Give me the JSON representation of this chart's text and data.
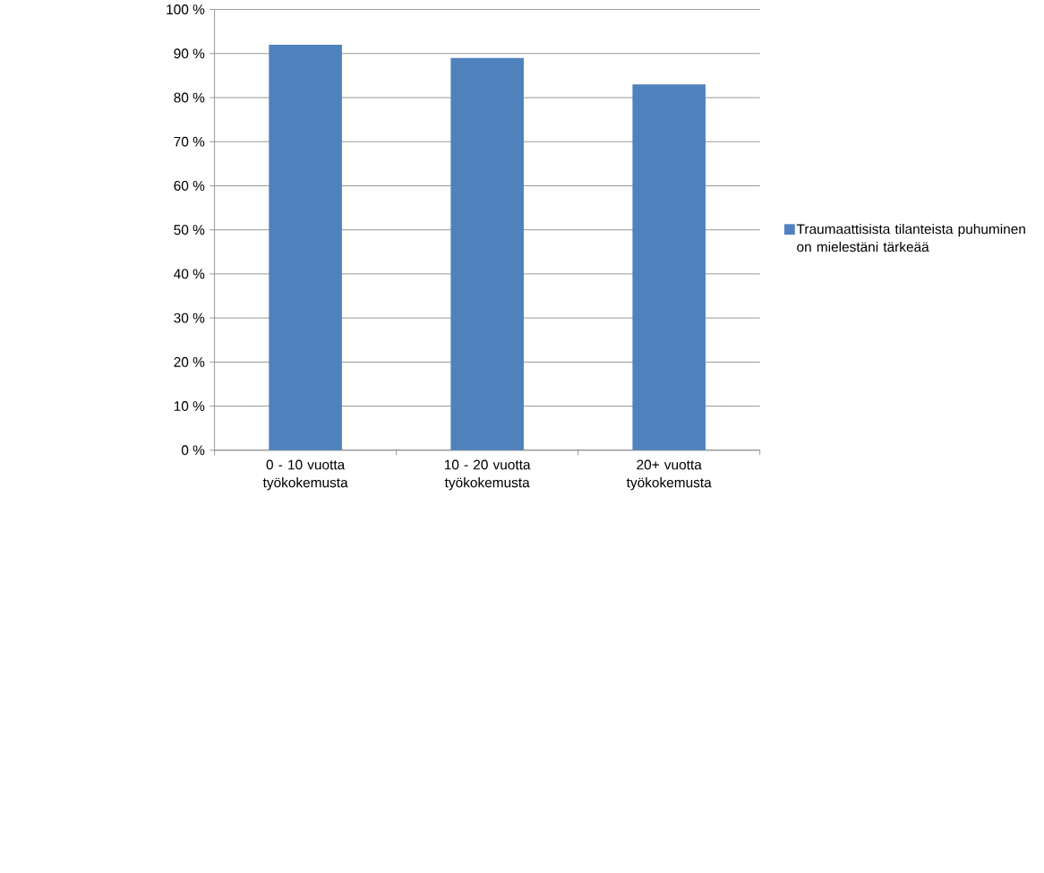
{
  "chart_data": {
    "type": "bar",
    "categories": [
      "0 - 10 vuotta työkokemusta",
      "10 - 20 vuotta työkokemusta",
      "20+ vuotta työkokemusta"
    ],
    "series": [
      {
        "name": "Traumaattisista tilanteista puhuminen on mielestäni tärkeää",
        "color": "#4f81bd",
        "values": [
          92,
          89,
          83
        ]
      }
    ],
    "ylim": [
      0,
      100
    ],
    "yticks": [
      {
        "value": 0,
        "label": "0 %"
      },
      {
        "value": 10,
        "label": "10 %"
      },
      {
        "value": 20,
        "label": "20 %"
      },
      {
        "value": 30,
        "label": "30 %"
      },
      {
        "value": 40,
        "label": "40 %"
      },
      {
        "value": 50,
        "label": "50 %"
      },
      {
        "value": 60,
        "label": "60 %"
      },
      {
        "value": 70,
        "label": "70 %"
      },
      {
        "value": 80,
        "label": "80 %"
      },
      {
        "value": 90,
        "label": "90 %"
      },
      {
        "value": 100,
        "label": "100 %"
      }
    ],
    "grid": "y",
    "legend": "right"
  }
}
